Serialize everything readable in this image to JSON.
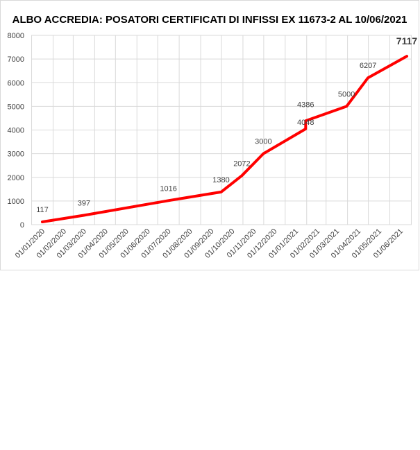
{
  "chart_data": {
    "type": "line",
    "title": "ALBO ACCREDIA: POSATORI CERTIFICATI DI INFISSI EX 11673-2 AL 10/06/2021",
    "xlabel": "",
    "ylabel": "",
    "ylim": [
      0,
      8000
    ],
    "y_ticks": [
      0,
      1000,
      2000,
      3000,
      4000,
      5000,
      6000,
      7000,
      8000
    ],
    "x_tick_labels": [
      "01/01/2020",
      "01/02/2020",
      "01/03/2020",
      "01/04/2020",
      "01/05/2020",
      "01/06/2020",
      "01/07/2020",
      "01/08/2020",
      "01/09/2020",
      "01/10/2020",
      "01/11/2020",
      "01/12/2020",
      "01/01/2021",
      "01/02/2021",
      "01/03/2021",
      "01/04/2021",
      "01/05/2021",
      "01/06/2021"
    ],
    "grid": true,
    "legend": "none",
    "line_color": "#ff0000",
    "points": [
      {
        "x": "01/01/2020",
        "y": 117,
        "label": "117"
      },
      {
        "x": "01/03/2020",
        "y": 397,
        "label": "397"
      },
      {
        "x": "01/07/2020",
        "y": 1016,
        "label": "1016"
      },
      {
        "x": "15/09/2020",
        "y": 1380,
        "label": "1380"
      },
      {
        "x": "15/10/2020",
        "y": 2072,
        "label": "2072"
      },
      {
        "x": "15/11/2020",
        "y": 3000,
        "label": "3000"
      },
      {
        "x": "15/01/2021",
        "y": 4048,
        "label": "4048"
      },
      {
        "x": "15/01/2021",
        "y": 4386,
        "label": "4386"
      },
      {
        "x": "15/03/2021",
        "y": 5000,
        "label": "5000"
      },
      {
        "x": "15/04/2021",
        "y": 6207,
        "label": "6207"
      },
      {
        "x": "10/06/2021",
        "y": 7117,
        "label": "7117"
      }
    ]
  }
}
